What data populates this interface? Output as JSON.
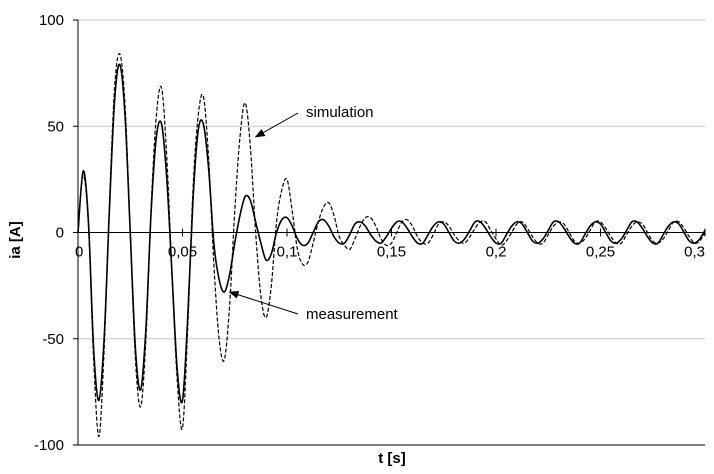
{
  "chart_data": {
    "type": "line",
    "title": "",
    "xlabel": "t [s]",
    "ylabel": "ia [A]",
    "xlim": [
      0,
      0.3
    ],
    "ylim": [
      -100,
      100
    ],
    "x_ticks": [
      0,
      0.05,
      0.1,
      0.15,
      0.2,
      0.25,
      0.3
    ],
    "x_tick_labels": [
      "0",
      "0,05",
      "0,1",
      "0,15",
      "0,2",
      "0,25",
      "0,3"
    ],
    "y_ticks": [
      -100,
      -50,
      0,
      50,
      100
    ],
    "y_tick_labels": [
      "-100",
      "-50",
      "0",
      "50",
      "100"
    ],
    "grid": "horizontal",
    "series": [
      {
        "name": "measurement",
        "style": "solid",
        "color": "#000000",
        "points": [
          [
            0,
            0
          ],
          [
            0.0025,
            29
          ],
          [
            0.005,
            5
          ],
          [
            0.0075,
            -55
          ],
          [
            0.01,
            -79
          ],
          [
            0.0125,
            -50
          ],
          [
            0.015,
            10
          ],
          [
            0.0175,
            62
          ],
          [
            0.02,
            79
          ],
          [
            0.0225,
            55
          ],
          [
            0.025,
            0
          ],
          [
            0.0275,
            -55
          ],
          [
            0.03,
            -74
          ],
          [
            0.0325,
            -45
          ],
          [
            0.035,
            10
          ],
          [
            0.0375,
            45
          ],
          [
            0.04,
            51
          ],
          [
            0.0425,
            25
          ],
          [
            0.045,
            -20
          ],
          [
            0.0475,
            -65
          ],
          [
            0.05,
            -79
          ],
          [
            0.0525,
            -40
          ],
          [
            0.055,
            15
          ],
          [
            0.0575,
            48
          ],
          [
            0.06,
            51
          ],
          [
            0.0625,
            30
          ],
          [
            0.065,
            -5
          ],
          [
            0.0675,
            -22
          ],
          [
            0.07,
            -28
          ],
          [
            0.0725,
            -20
          ],
          [
            0.075,
            -5
          ],
          [
            0.0775,
            8
          ],
          [
            0.08,
            17
          ],
          [
            0.0825,
            15
          ],
          [
            0.085,
            5
          ],
          [
            0.0875,
            -5
          ],
          [
            0.09,
            -13
          ],
          [
            0.0925,
            -10
          ],
          [
            0.095,
            0
          ],
          [
            0.0975,
            6
          ],
          [
            0.1,
            7
          ],
          [
            0.1025,
            3
          ],
          [
            0.105,
            -3
          ],
          [
            0.1075,
            -6
          ],
          [
            0.11,
            -5
          ],
          [
            0.1125,
            0
          ],
          [
            0.115,
            5
          ],
          [
            0.1175,
            6
          ],
          [
            0.12,
            3
          ],
          [
            0.1225,
            -2
          ],
          [
            0.125,
            -5
          ],
          [
            0.1275,
            -5
          ],
          [
            0.13,
            -1
          ],
          [
            0.1325,
            4
          ],
          [
            0.135,
            5
          ],
          [
            0.1375,
            3
          ],
          [
            0.14,
            -1
          ],
          [
            0.1425,
            -4
          ],
          [
            0.145,
            -5
          ],
          [
            0.1475,
            -2
          ],
          [
            0.15,
            2
          ],
          [
            0.1525,
            5
          ],
          [
            0.155,
            5
          ],
          [
            0.1575,
            2
          ],
          [
            0.16,
            -2
          ],
          [
            0.1625,
            -5
          ],
          [
            0.165,
            -5
          ],
          [
            0.1675,
            -1
          ],
          [
            0.17,
            3
          ],
          [
            0.1725,
            5
          ],
          [
            0.175,
            4
          ],
          [
            0.1775,
            0
          ],
          [
            0.18,
            -4
          ],
          [
            0.1825,
            -5
          ],
          [
            0.185,
            -3
          ],
          [
            0.1875,
            1
          ],
          [
            0.19,
            5
          ],
          [
            0.1925,
            5
          ],
          [
            0.195,
            2
          ],
          [
            0.1975,
            -2
          ],
          [
            0.2,
            -5
          ],
          [
            0.2025,
            -5
          ],
          [
            0.205,
            -1
          ],
          [
            0.2075,
            3
          ],
          [
            0.21,
            5
          ],
          [
            0.2125,
            4
          ],
          [
            0.215,
            0
          ],
          [
            0.2175,
            -4
          ],
          [
            0.22,
            -5
          ],
          [
            0.2225,
            -3
          ],
          [
            0.225,
            1
          ],
          [
            0.2275,
            5
          ],
          [
            0.23,
            5
          ],
          [
            0.2325,
            2
          ],
          [
            0.235,
            -2
          ],
          [
            0.2375,
            -5
          ],
          [
            0.24,
            -5
          ],
          [
            0.2425,
            -1
          ],
          [
            0.245,
            3
          ],
          [
            0.2475,
            5
          ],
          [
            0.25,
            4
          ],
          [
            0.2525,
            0
          ],
          [
            0.255,
            -4
          ],
          [
            0.2575,
            -5
          ],
          [
            0.26,
            -3
          ],
          [
            0.2625,
            1
          ],
          [
            0.265,
            5
          ],
          [
            0.2675,
            5
          ],
          [
            0.27,
            2
          ],
          [
            0.2725,
            -2
          ],
          [
            0.275,
            -5
          ],
          [
            0.2775,
            -5
          ],
          [
            0.28,
            -1
          ],
          [
            0.2825,
            3
          ],
          [
            0.285,
            5
          ],
          [
            0.2875,
            4
          ],
          [
            0.29,
            0
          ],
          [
            0.2925,
            -4
          ],
          [
            0.295,
            -5
          ],
          [
            0.2975,
            -3
          ],
          [
            0.3,
            1
          ]
        ]
      },
      {
        "name": "simulation",
        "style": "dashed",
        "color": "#000000",
        "points": [
          [
            0,
            0
          ],
          [
            0.0025,
            27
          ],
          [
            0.005,
            3
          ],
          [
            0.0075,
            -60
          ],
          [
            0.01,
            -96
          ],
          [
            0.0125,
            -55
          ],
          [
            0.015,
            12
          ],
          [
            0.0175,
            68
          ],
          [
            0.02,
            84
          ],
          [
            0.0225,
            60
          ],
          [
            0.025,
            0
          ],
          [
            0.0275,
            -60
          ],
          [
            0.03,
            -82
          ],
          [
            0.0325,
            -50
          ],
          [
            0.035,
            12
          ],
          [
            0.0375,
            55
          ],
          [
            0.04,
            68
          ],
          [
            0.0425,
            35
          ],
          [
            0.045,
            -20
          ],
          [
            0.0475,
            -70
          ],
          [
            0.05,
            -92
          ],
          [
            0.0525,
            -45
          ],
          [
            0.055,
            20
          ],
          [
            0.0575,
            55
          ],
          [
            0.06,
            64
          ],
          [
            0.0625,
            35
          ],
          [
            0.065,
            -15
          ],
          [
            0.0675,
            -50
          ],
          [
            0.07,
            -60
          ],
          [
            0.0725,
            -35
          ],
          [
            0.075,
            10
          ],
          [
            0.0775,
            45
          ],
          [
            0.08,
            61
          ],
          [
            0.0825,
            40
          ],
          [
            0.085,
            0
          ],
          [
            0.0875,
            -30
          ],
          [
            0.09,
            -40
          ],
          [
            0.0925,
            -25
          ],
          [
            0.095,
            5
          ],
          [
            0.0975,
            20
          ],
          [
            0.1,
            25
          ],
          [
            0.1025,
            10
          ],
          [
            0.105,
            -8
          ],
          [
            0.1075,
            -15
          ],
          [
            0.11,
            -14
          ],
          [
            0.1125,
            -5
          ],
          [
            0.115,
            5
          ],
          [
            0.1175,
            12
          ],
          [
            0.12,
            14
          ],
          [
            0.1225,
            8
          ],
          [
            0.125,
            -2
          ],
          [
            0.1275,
            -6
          ],
          [
            0.13,
            -8
          ],
          [
            0.1325,
            -3
          ],
          [
            0.135,
            3
          ],
          [
            0.1375,
            7
          ],
          [
            0.14,
            7
          ],
          [
            0.1425,
            3
          ],
          [
            0.145,
            -3
          ],
          [
            0.1475,
            -6
          ],
          [
            0.15,
            -5
          ],
          [
            0.1525,
            0
          ],
          [
            0.155,
            5
          ],
          [
            0.1575,
            6
          ],
          [
            0.16,
            3
          ],
          [
            0.1625,
            -2
          ],
          [
            0.165,
            -5
          ],
          [
            0.1675,
            -5
          ],
          [
            0.17,
            -1
          ],
          [
            0.1725,
            4
          ],
          [
            0.175,
            5
          ],
          [
            0.1775,
            3
          ],
          [
            0.18,
            -1
          ],
          [
            0.1825,
            -4
          ],
          [
            0.185,
            -5
          ],
          [
            0.1875,
            -2
          ],
          [
            0.19,
            2
          ],
          [
            0.1925,
            5
          ],
          [
            0.195,
            5
          ],
          [
            0.1975,
            1
          ],
          [
            0.2,
            -3
          ],
          [
            0.2025,
            -6
          ],
          [
            0.205,
            -4
          ],
          [
            0.2075,
            0
          ],
          [
            0.21,
            4
          ],
          [
            0.2125,
            5
          ],
          [
            0.215,
            2
          ],
          [
            0.2175,
            -2
          ],
          [
            0.22,
            -5
          ],
          [
            0.2225,
            -5
          ],
          [
            0.225,
            -1
          ],
          [
            0.2275,
            3
          ],
          [
            0.23,
            5
          ],
          [
            0.2325,
            4
          ],
          [
            0.235,
            0
          ],
          [
            0.2375,
            -4
          ],
          [
            0.24,
            -5
          ],
          [
            0.2425,
            -3
          ],
          [
            0.245,
            1
          ],
          [
            0.2475,
            5
          ],
          [
            0.25,
            5
          ],
          [
            0.2525,
            2
          ],
          [
            0.255,
            -2
          ],
          [
            0.2575,
            -5
          ],
          [
            0.26,
            -5
          ],
          [
            0.2625,
            -1
          ],
          [
            0.265,
            3
          ],
          [
            0.2675,
            5
          ],
          [
            0.27,
            4
          ],
          [
            0.2725,
            0
          ],
          [
            0.275,
            -4
          ],
          [
            0.2775,
            -5
          ],
          [
            0.28,
            -3
          ],
          [
            0.2825,
            1
          ],
          [
            0.285,
            5
          ],
          [
            0.2875,
            5
          ],
          [
            0.29,
            2
          ],
          [
            0.2925,
            -2
          ],
          [
            0.295,
            -5
          ],
          [
            0.2975,
            -4
          ],
          [
            0.3,
            0
          ]
        ]
      }
    ],
    "annotations": [
      {
        "text": "simulation",
        "arrow_to": [
          0.085,
          45
        ]
      },
      {
        "text": "measurement",
        "arrow_to": [
          0.0725,
          -28
        ]
      }
    ]
  }
}
